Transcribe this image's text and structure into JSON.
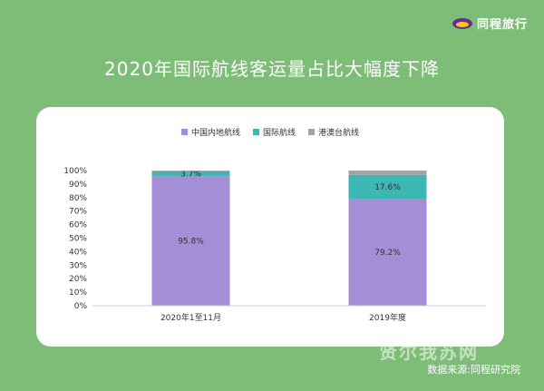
{
  "brand": {
    "name": "同程旅行"
  },
  "title": "2020年国际航线客运量占比大幅度下降",
  "source": "数据来源:同程研究院",
  "watermark": "贤尔我苏网",
  "colors": {
    "background": "#7dbd77",
    "domestic": "#a48ed6",
    "international": "#3bb7b4",
    "hkmt": "#a3a3a3"
  },
  "chart_data": {
    "type": "bar",
    "stacked": true,
    "categories": [
      "2020年1至11月",
      "2019年度"
    ],
    "series": [
      {
        "name": "中国内地航线",
        "values": [
          95.8,
          79.2
        ],
        "labels": [
          "95.8%",
          "79.2%"
        ],
        "color": "#a48ed6"
      },
      {
        "name": "国际航线",
        "values": [
          3.7,
          17.6
        ],
        "labels": [
          "3.7%",
          "17.6%"
        ],
        "color": "#3bb7b4"
      },
      {
        "name": "港澳台航线",
        "values": [
          0.5,
          3.2
        ],
        "labels": [
          "",
          ""
        ],
        "color": "#a3a3a3"
      }
    ],
    "yticks": [
      "0%",
      "10%",
      "20%",
      "30%",
      "40%",
      "50%",
      "60%",
      "70%",
      "80%",
      "90%",
      "100%"
    ],
    "ylim": [
      0,
      100
    ],
    "legend_position": "top"
  }
}
